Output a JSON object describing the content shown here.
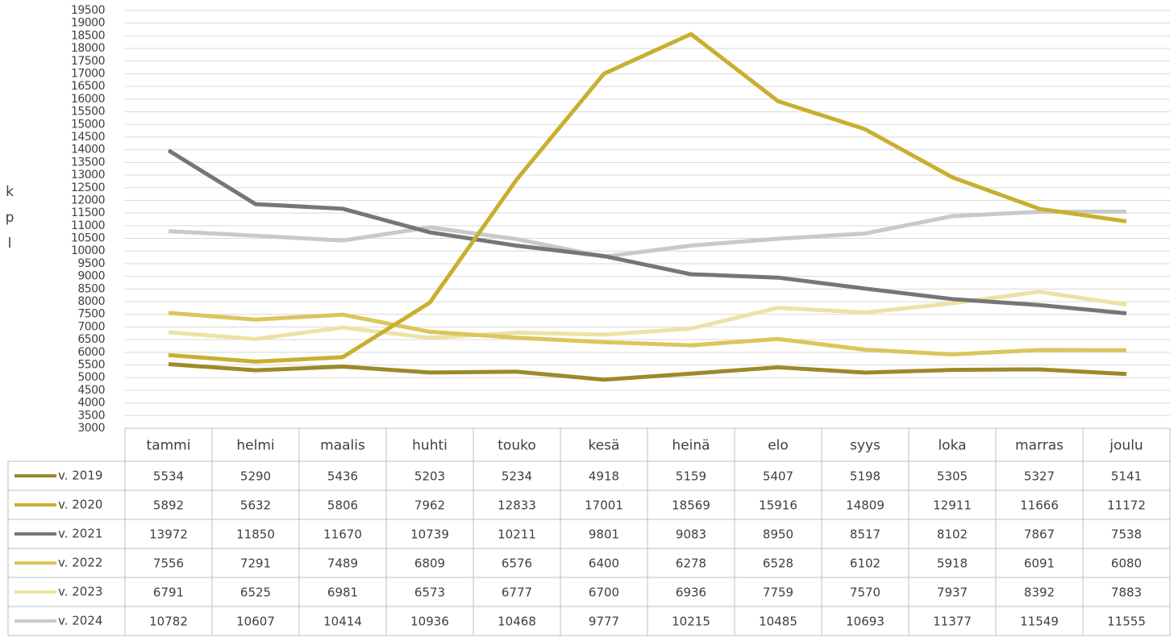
{
  "chart_data": {
    "type": "line",
    "y_label": "kpl",
    "categories": [
      "tammi",
      "helmi",
      "maalis",
      "huhti",
      "touko",
      "kesä",
      "heinä",
      "elo",
      "syys",
      "loka",
      "marras",
      "joulu"
    ],
    "series": [
      {
        "name": "v. 2019",
        "color": "#9c8a2a",
        "values": [
          5534,
          5290,
          5436,
          5203,
          5234,
          4918,
          5159,
          5407,
          5198,
          5305,
          5327,
          5141
        ]
      },
      {
        "name": "v. 2020",
        "color": "#c9af2f",
        "values": [
          5892,
          5632,
          5806,
          7962,
          12833,
          17001,
          18569,
          15916,
          14809,
          12911,
          11666,
          11172
        ]
      },
      {
        "name": "v. 2021",
        "color": "#767676",
        "values": [
          13972,
          11850,
          11670,
          10739,
          10211,
          9801,
          9083,
          8950,
          8517,
          8102,
          7867,
          7538
        ]
      },
      {
        "name": "v. 2022",
        "color": "#dac65c",
        "values": [
          7556,
          7291,
          7489,
          6809,
          6576,
          6400,
          6278,
          6528,
          6102,
          5918,
          6091,
          6080
        ]
      },
      {
        "name": "v. 2023",
        "color": "#ede2a6",
        "values": [
          6791,
          6525,
          6981,
          6573,
          6777,
          6700,
          6936,
          7759,
          7570,
          7937,
          8392,
          7883
        ]
      },
      {
        "name": "v. 2024",
        "color": "#c9c9c9",
        "values": [
          10782,
          10607,
          10414,
          10936,
          10468,
          9777,
          10215,
          10485,
          10693,
          11377,
          11549,
          11555
        ]
      }
    ],
    "ylim": [
      3000,
      19500
    ],
    "yticks": [
      3000,
      3500,
      4000,
      4500,
      5000,
      5500,
      6000,
      6500,
      7000,
      7500,
      8000,
      8500,
      9000,
      9500,
      10000,
      10500,
      11000,
      11500,
      12000,
      12500,
      13000,
      13500,
      14000,
      14500,
      15000,
      15500,
      16000,
      16500,
      17000,
      17500,
      18000,
      18500,
      19000,
      19500
    ],
    "grid": true
  }
}
